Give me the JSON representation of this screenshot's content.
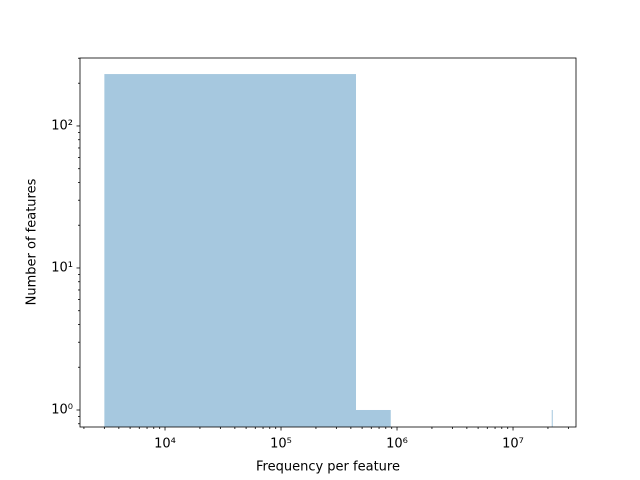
{
  "chart_data": {
    "type": "histogram",
    "xlabel": "Frequency per feature",
    "ylabel": "Number of features",
    "color": "#a6c8df",
    "xscale": "log",
    "yscale": "log",
    "bins": [
      3000,
      443000,
      883000,
      1323000,
      1763000,
      2203000,
      2643000,
      3083000,
      3523000,
      3963000,
      4403000,
      4843000,
      5283000,
      5723000,
      6163000,
      6603000,
      7043000,
      7483000,
      7923000,
      8363000,
      8803000,
      9243000,
      9683000,
      10123000,
      10563000,
      11003000,
      11443000,
      11883000,
      12323000,
      12763000,
      13203000,
      13643000,
      14083000,
      14523000,
      14963000,
      15403000,
      15843000,
      16283000,
      16723000,
      17163000,
      17603000,
      18043000,
      18483000,
      18923000,
      19363000,
      19803000,
      20243000,
      20683000,
      21123000,
      21563000,
      22003000
    ],
    "counts": [
      232,
      1,
      0,
      0,
      0,
      0,
      0,
      0,
      0,
      0,
      0,
      0,
      0,
      0,
      0,
      0,
      0,
      0,
      0,
      0,
      0,
      0,
      0,
      0,
      0,
      0,
      0,
      0,
      0,
      0,
      0,
      0,
      0,
      0,
      0,
      0,
      0,
      0,
      0,
      0,
      0,
      0,
      0,
      0,
      0,
      0,
      0,
      0,
      0,
      1
    ],
    "xlim": [
      1850,
      34900000
    ],
    "ylim": [
      0.759,
      301
    ],
    "xticks": [
      {
        "value": 10000,
        "label": "10⁴"
      },
      {
        "value": 100000,
        "label": "10⁵"
      },
      {
        "value": 1000000,
        "label": "10⁶"
      },
      {
        "value": 10000000,
        "label": "10⁷"
      }
    ],
    "yticks": [
      {
        "value": 1,
        "label": "10⁰"
      },
      {
        "value": 10,
        "label": "10¹"
      },
      {
        "value": 100,
        "label": "10²"
      }
    ],
    "xminorticks": [
      2000,
      3000,
      4000,
      5000,
      6000,
      7000,
      8000,
      9000,
      20000,
      30000,
      40000,
      50000,
      60000,
      70000,
      80000,
      90000,
      200000,
      300000,
      400000,
      500000,
      600000,
      700000,
      800000,
      900000,
      2000000,
      3000000,
      4000000,
      5000000,
      6000000,
      7000000,
      8000000,
      9000000,
      20000000,
      30000000
    ],
    "yminorticks": [
      0.8,
      0.9,
      2,
      3,
      4,
      5,
      6,
      7,
      8,
      9,
      20,
      30,
      40,
      50,
      60,
      70,
      80,
      90,
      200,
      300
    ]
  }
}
